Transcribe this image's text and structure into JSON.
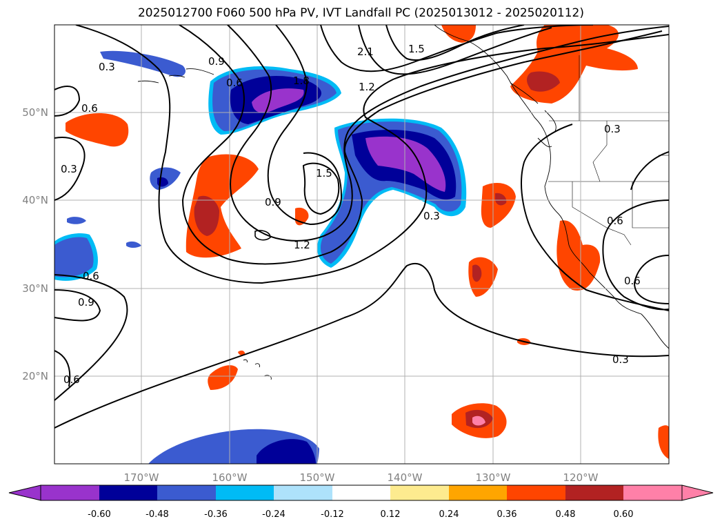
{
  "title": "2025012700 F060 500 hPa PV, IVT Landfall PC (2025013012 - 2025020112)",
  "lat_labels": [
    "50°N",
    "40°N",
    "30°N",
    "20°N"
  ],
  "lon_labels": [
    "170°W",
    "160°W",
    "150°W",
    "140°W",
    "130°W",
    "120°W"
  ],
  "contour_labels": [
    "0.3",
    "0.6",
    "0.9",
    "1.2",
    "1.5",
    "1.8",
    "2.1"
  ],
  "colorbar": {
    "ticks": [
      "-0.60",
      "-0.48",
      "-0.36",
      "-0.24",
      "-0.12",
      "0.12",
      "0.24",
      "0.36",
      "0.48",
      "0.60"
    ],
    "colors": [
      "#9933cc",
      "#000099",
      "#3b5bd0",
      "#00bbf5",
      "#aee2fb",
      "#ffffff",
      "#fdeb8f",
      "#ffa500",
      "#ff4500",
      "#b22222",
      "#ff80a8"
    ]
  },
  "contour_color": "#000000",
  "grid_color": "#b0b0b0"
}
